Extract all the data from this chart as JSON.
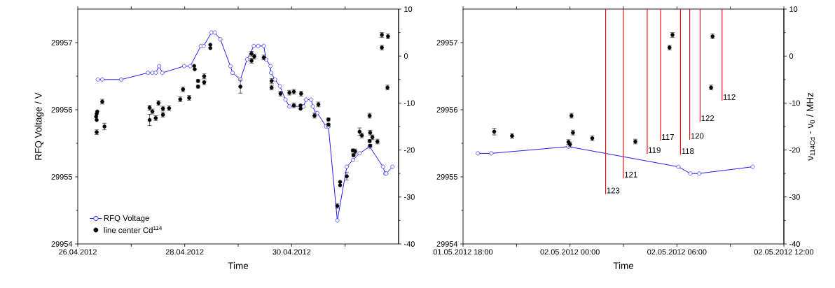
{
  "chart_data": [
    {
      "type": "line",
      "xlabel": "Time",
      "ylabel": "RFQ Voltage / V",
      "legend": "bottom left",
      "xlim": [
        "2012-04-26",
        "2012-05-02"
      ],
      "xticks": [
        {
          "value": "2012-04-26",
          "label": "26.04.2012"
        },
        {
          "value": "2012-04-27",
          "label": null
        },
        {
          "value": "2012-04-28",
          "label": "28.04.2012"
        },
        {
          "value": "2012-04-29",
          "label": null
        },
        {
          "value": "2012-04-30",
          "label": "30.04.2012"
        },
        {
          "value": "2012-05-01",
          "label": null
        }
      ],
      "ylim": [
        29954,
        29957.5
      ],
      "yticks": [
        29954,
        29955,
        29956,
        29957
      ],
      "y2lim": [
        -40,
        10
      ],
      "y2ticks": [
        -40,
        -30,
        -20,
        -10,
        0,
        10
      ],
      "series": [
        {
          "name": "RFQ Voltage",
          "axis": "y",
          "color": "#0000ff",
          "marker": "circle",
          "x": [
            "2012-04-26T09:00",
            "2012-04-26T11:00",
            "2012-04-26T19:30",
            "2012-04-27T07:30",
            "2012-04-27T09:30",
            "2012-04-27T11:00",
            "2012-04-27T12:30",
            "2012-04-27T14:00",
            "2012-04-27T23:45",
            "2012-04-28T02:30",
            "2012-04-28T07:15",
            "2012-04-28T08:30",
            "2012-04-28T12:00",
            "2012-04-28T13:30",
            "2012-04-28T16:00",
            "2012-04-28T20:30",
            "2012-04-28T21:30",
            "2012-04-29T01:00",
            "2012-04-29T04:00",
            "2012-04-29T07:00",
            "2012-04-29T09:00",
            "2012-04-29T11:30",
            "2012-04-29T12:30",
            "2012-04-29T14:30",
            "2012-04-29T14:45",
            "2012-04-29T16:30",
            "2012-04-29T18:45",
            "2012-04-29T21:15",
            "2012-04-29T23:00",
            "2012-04-30T05:15",
            "2012-04-30T06:30",
            "2012-04-30T08:45",
            "2012-04-30T09:30",
            "2012-04-30T10:45",
            "2012-04-30T11:30",
            "2012-04-30T15:30",
            "2012-04-30T16:30",
            "2012-04-30T20:30",
            "2012-05-01T00:45",
            "2012-05-01T03:30",
            "2012-05-01T06:30",
            "2012-05-01T11:00",
            "2012-05-01T17:00",
            "2012-05-01T18:00",
            "2012-05-01T18:30",
            "2012-05-01T21:15"
          ],
          "values": [
            29956.45,
            29956.45,
            29956.45,
            29956.55,
            29956.55,
            29956.55,
            29956.65,
            29956.55,
            29956.65,
            29956.65,
            29956.95,
            29956.95,
            29957.15,
            29957.15,
            29957.05,
            29956.65,
            29956.55,
            29956.45,
            29956.75,
            29956.95,
            29956.95,
            29956.95,
            29956.75,
            29956.65,
            29956.55,
            29956.45,
            29956.35,
            29956.15,
            29956.05,
            29956.05,
            29956.15,
            29956.15,
            29956.05,
            29955.95,
            29955.95,
            29955.75,
            29955.75,
            29954.35,
            29955.15,
            29955.25,
            29955.35,
            29955.45,
            29955.15,
            29955.05,
            29955.05,
            29955.15
          ]
        },
        {
          "name": "line center Cd$^{114}$",
          "type": "scatter",
          "axis": "y2",
          "color": "#000000",
          "marker": "circle",
          "x": [
            "2012-04-26T08:30",
            "2012-04-26T08:30",
            "2012-04-26T08:15",
            "2012-04-26T08:30",
            "2012-04-26T08:45",
            "2012-04-26T11:00",
            "2012-04-26T12:00",
            "2012-04-27T08:15",
            "2012-04-27T08:15",
            "2012-04-27T09:30",
            "2012-04-27T11:00",
            "2012-04-27T12:15",
            "2012-04-27T14:15",
            "2012-04-27T14:15",
            "2012-04-27T17:00",
            "2012-04-27T22:00",
            "2012-04-27T23:15",
            "2012-04-28T02:00",
            "2012-04-28T04:15",
            "2012-04-28T04:30",
            "2012-04-28T06:00",
            "2012-04-28T06:00",
            "2012-04-28T08:45",
            "2012-04-28T08:45",
            "2012-04-28T11:30",
            "2012-04-28T11:30",
            "2012-04-29T01:00",
            "2012-04-29T06:00",
            "2012-04-29T06:00",
            "2012-04-29T07:15",
            "2012-04-29T11:30",
            "2012-04-29T15:00",
            "2012-04-29T15:00",
            "2012-04-29T19:00",
            "2012-04-29T23:00",
            "2012-04-30T01:00",
            "2012-04-30T01:00",
            "2012-04-30T04:15",
            "2012-04-30T04:00",
            "2012-04-30T04:00",
            "2012-04-30T10:15",
            "2012-04-30T12:00",
            "2012-04-30T16:30",
            "2012-04-30T16:30",
            "2012-04-30T20:30",
            "2012-04-30T21:45",
            "2012-04-30T21:45",
            "2012-05-01T00:45",
            "2012-05-01T03:30",
            "2012-05-01T03:45",
            "2012-05-01T04:30",
            "2012-05-01T06:30",
            "2012-05-01T07:30",
            "2012-05-01T11:00",
            "2012-05-01T11:15",
            "2012-05-01T11:00",
            "2012-05-01T11:15",
            "2012-05-01T12:15",
            "2012-05-01T14:30",
            "2012-05-01T16:30",
            "2012-05-01T16:30",
            "2012-05-01T19:15",
            "2012-05-01T19:00"
          ],
          "values": [
            -16.2,
            -13.6,
            -12.9,
            -12.3,
            -11.8,
            -9.7,
            -15.0,
            -13.6,
            -11.0,
            -11.8,
            -13.2,
            -10.0,
            -12.5,
            -11.2,
            -11.1,
            -9.2,
            -7.1,
            -8.9,
            -2.1,
            -2.8,
            -5.3,
            -6.5,
            -4.3,
            -5.6,
            2.4,
            1.7,
            -6.5,
            0.5,
            -1.0,
            -0.1,
            -0.3,
            -5.3,
            -6.7,
            -8.0,
            -7.8,
            -7.6,
            -10.5,
            -8.0,
            -10.5,
            -11.2,
            -12.7,
            -10.3,
            -13.5,
            -14.6,
            -31.9,
            -26.8,
            -27.5,
            -25.6,
            -20.1,
            -21.1,
            -20.3,
            -16.1,
            -16.9,
            -12.7,
            -16.3,
            -18.1,
            -19.1,
            -17.3,
            -18.2,
            4.5,
            1.8,
            4.2,
            -6.7
          ],
          "errors": [
            0.5,
            null,
            null,
            null,
            null,
            0.5,
            0.7,
            1.2,
            0.5,
            0.5,
            0.5,
            0.5,
            0.5,
            0.5,
            0.5,
            0.5,
            0.5,
            0.5,
            null,
            null,
            0.3,
            0.3,
            0.5,
            0.5,
            null,
            null,
            1.4,
            0.5,
            0.5,
            0.5,
            0.5,
            0.5,
            0.5,
            0.5,
            0.5,
            0.5,
            0.5,
            0.5,
            null,
            null,
            0.5,
            0.5,
            0.3,
            0.3,
            0.5,
            null,
            null,
            0.8,
            0.3,
            0.3,
            0.5,
            0.8,
            0.5,
            0.5,
            0.5,
            0.3,
            0.3,
            0.5,
            0.5,
            0.5,
            0.5,
            0.5,
            0.5
          ]
        }
      ]
    },
    {
      "type": "line",
      "xlabel": "Time",
      "y2label": "ν$_{114Cd}$ - ν$_{0}$ / MHz",
      "xlim": [
        "2012-05-01T18:00",
        "2012-05-02T12:00"
      ],
      "xticks": [
        {
          "value": "2012-05-01T18:00",
          "label": "01.05.2012 18:00"
        },
        {
          "value": "2012-05-01T21:00",
          "label": null
        },
        {
          "value": "2012-05-02T00:00",
          "label": "02.05.2012 00:00"
        },
        {
          "value": "2012-05-02T03:00",
          "label": null
        },
        {
          "value": "2012-05-02T06:00",
          "label": "02.05.2012 06:00"
        },
        {
          "value": "2012-05-02T09:00",
          "label": null
        },
        {
          "value": "2012-05-02T12:00",
          "label": "02.05.2012 12:00"
        }
      ],
      "ylim": [
        29954,
        29957.5
      ],
      "yticks": [
        29954,
        29955,
        29956,
        29957
      ],
      "y2lim": [
        -40,
        10
      ],
      "y2ticks": [
        -40,
        -30,
        -20,
        -10,
        0,
        10
      ],
      "series": [
        {
          "axis": "y",
          "color": "#0000ff",
          "marker": "circle",
          "x": [
            "2012-05-01T18:50",
            "2012-05-01T19:35",
            "2012-05-01T23:55",
            "2012-05-02T06:05",
            "2012-05-02T06:45",
            "2012-05-02T07:15",
            "2012-05-02T10:15"
          ],
          "values": [
            29955.35,
            29955.35,
            29955.45,
            29955.15,
            29955.05,
            29955.05,
            29955.15
          ]
        },
        {
          "type": "scatter",
          "axis": "y2",
          "color": "#000000",
          "marker": "circle",
          "x": [
            "2012-05-01T19:45",
            "2012-05-01T20:45",
            "2012-05-01T23:55",
            "2012-05-02T00:00",
            "2012-05-02T00:05",
            "2012-05-02T00:10",
            "2012-05-02T01:15",
            "2012-05-02T03:40",
            "2012-05-02T05:35",
            "2012-05-02T05:45",
            "2012-05-02T07:55",
            "2012-05-02T08:00"
          ],
          "values": [
            -16.1,
            -17.0,
            -18.3,
            -18.8,
            -12.7,
            -16.3,
            -17.5,
            -18.2,
            1.8,
            4.5,
            -6.7,
            4.2
          ],
          "errors": [
            0.7,
            0.5,
            0.5,
            0.5,
            0.5,
            0.5,
            0.5,
            0.5,
            0.5,
            0.5,
            0.5,
            0.5
          ]
        },
        {
          "name": "123",
          "axis": "y2",
          "color": "#ff0000",
          "marker": "none",
          "x": [
            "2012-05-02T02:00",
            "2012-05-02T02:00"
          ],
          "values": [
            10,
            -29.4
          ]
        },
        {
          "name": "121",
          "axis": "y2",
          "color": "#ff0000",
          "marker": "none",
          "x": [
            "2012-05-02T03:00",
            "2012-05-02T03:00"
          ],
          "values": [
            10,
            -26.0
          ]
        },
        {
          "name": "119",
          "axis": "y2",
          "color": "#ff0000",
          "marker": "none",
          "x": [
            "2012-05-02T04:20",
            "2012-05-02T04:20"
          ],
          "values": [
            10,
            -20.8
          ]
        },
        {
          "name": "117",
          "axis": "y2",
          "color": "#ff0000",
          "marker": "none",
          "x": [
            "2012-05-02T05:05",
            "2012-05-02T05:05"
          ],
          "values": [
            10,
            -18.0
          ]
        },
        {
          "name": "118",
          "axis": "y2",
          "color": "#ff0000",
          "marker": "none",
          "x": [
            "2012-05-02T06:12",
            "2012-05-02T06:12"
          ],
          "values": [
            10,
            -21.0
          ]
        },
        {
          "name": "120",
          "axis": "y2",
          "color": "#ff0000",
          "marker": "none",
          "x": [
            "2012-05-02T06:43",
            "2012-05-02T06:43"
          ],
          "values": [
            10,
            -17.8
          ]
        },
        {
          "name": "122",
          "axis": "y2",
          "color": "#ff0000",
          "marker": "none",
          "x": [
            "2012-05-02T07:18",
            "2012-05-02T07:18"
          ],
          "values": [
            10,
            -14.0
          ]
        },
        {
          "name": "112",
          "axis": "y2",
          "color": "#ff0000",
          "marker": "none",
          "x": [
            "2012-05-02T08:32",
            "2012-05-02T08:32"
          ],
          "values": [
            10,
            -9.5
          ]
        }
      ]
    }
  ]
}
